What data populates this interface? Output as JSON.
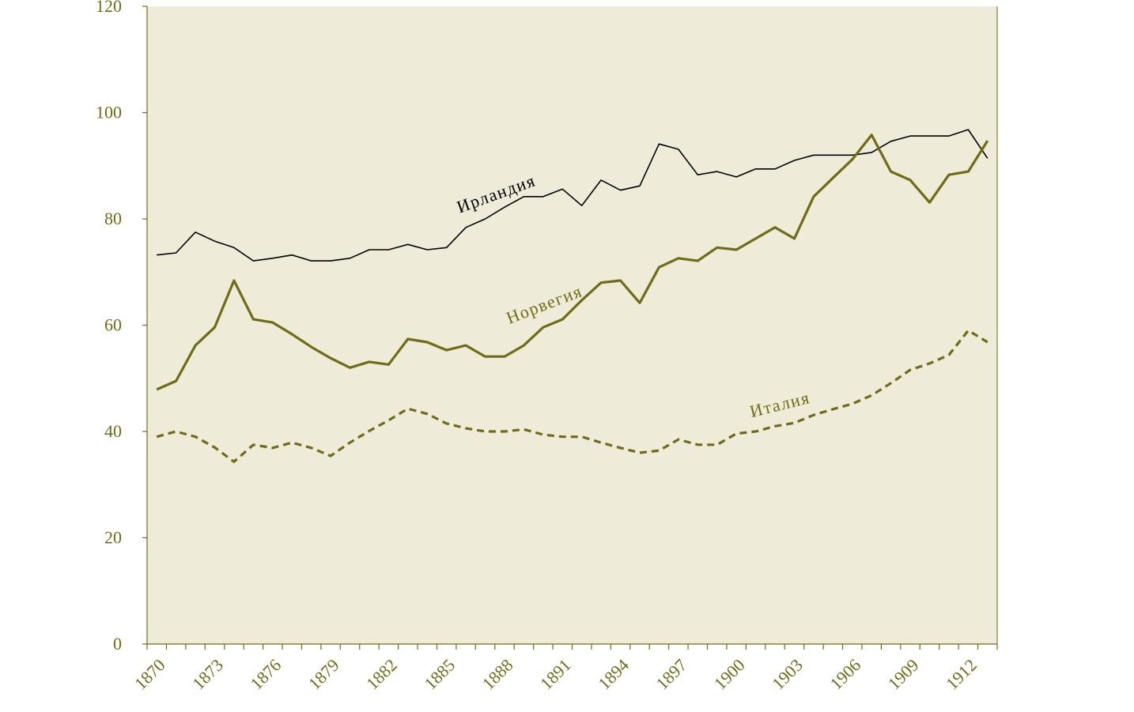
{
  "chart_data": {
    "type": "line",
    "categories": [
      "1870",
      null,
      null,
      "1873",
      null,
      null,
      "1876",
      null,
      null,
      "1879",
      null,
      null,
      "1882",
      null,
      null,
      "1885",
      null,
      null,
      "1888",
      null,
      null,
      "1891",
      null,
      null,
      "1894",
      null,
      null,
      "1897",
      null,
      null,
      "1900",
      null,
      null,
      "1903",
      null,
      null,
      "1906",
      null,
      null,
      "1909",
      null,
      null,
      "1912",
      null
    ],
    "series": [
      {
        "name": "Ирландия",
        "color": "#000000",
        "style": "solid",
        "values": [
          73.2,
          73.6,
          77.5,
          75.8,
          74.6,
          72.1,
          72.6,
          73.2,
          72.1,
          72.1,
          72.6,
          74.2,
          74.2,
          75.2,
          74.2,
          74.6,
          78.4,
          80,
          82.2,
          84.2,
          84.2,
          85.6,
          82.5,
          87.3,
          85.4,
          86.2,
          94.1,
          93.1,
          88.3,
          88.9,
          87.9,
          89.4,
          89.4,
          91,
          92,
          92,
          92,
          92.5,
          94.6,
          95.6,
          95.6,
          95.6,
          96.8,
          91.4
        ]
      },
      {
        "name": "Норвегия",
        "color": "#6f6c17",
        "style": "solid",
        "values": [
          47.9,
          49.5,
          56.2,
          59.6,
          68.4,
          61.1,
          60.5,
          58.3,
          55.9,
          53.8,
          52,
          53.1,
          52.6,
          57.4,
          56.8,
          55.3,
          56.2,
          54.1,
          54.1,
          56.2,
          59.6,
          61.1,
          64.7,
          68,
          68.4,
          64.2,
          70.9,
          72.6,
          72.1,
          74.6,
          74.2,
          76.3,
          78.4,
          76.3,
          84.2,
          87.7,
          91.2,
          95.8,
          88.9,
          87.3,
          83.1,
          88.3,
          88.9,
          94.7
        ]
      },
      {
        "name": "Италия",
        "color": "#6f6c17",
        "style": "dashed",
        "values": [
          39,
          40,
          39,
          37,
          34.3,
          37.5,
          36.9,
          37.9,
          36.9,
          35.4,
          37.9,
          40.1,
          42.1,
          44.3,
          43.3,
          41.5,
          40.6,
          40,
          40,
          40.4,
          39.4,
          39,
          39,
          37.9,
          36.9,
          36,
          36.4,
          38.5,
          37.5,
          37.5,
          39.6,
          40,
          41,
          41.6,
          43.1,
          44.2,
          45.2,
          46.8,
          49.1,
          51.6,
          52.8,
          54.4,
          59,
          56.8
        ]
      }
    ],
    "ylim": [
      0,
      120
    ],
    "yticks": [
      0,
      20,
      40,
      60,
      80,
      100,
      120
    ],
    "grid": false,
    "axis_color": "#6f6c17",
    "plot_background": "#efebd9"
  }
}
